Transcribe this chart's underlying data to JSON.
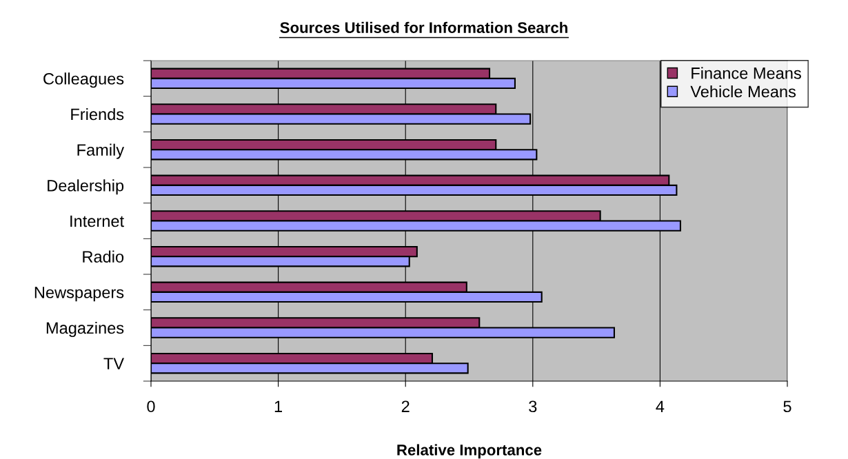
{
  "chart_data": {
    "type": "bar",
    "orientation": "horizontal",
    "title": "Sources Utilised for Information Search",
    "xlabel": "Relative Importance",
    "categories": [
      "Colleagues",
      "Friends",
      "Family",
      "Dealership",
      "Internet",
      "Radio",
      "Newspapers",
      "Magazines",
      "TV"
    ],
    "series": [
      {
        "name": "Finance Means",
        "color": "#993366",
        "values": [
          2.66,
          2.71,
          2.71,
          4.07,
          3.53,
          2.09,
          2.48,
          2.58,
          2.21
        ]
      },
      {
        "name": "Vehicle Means",
        "color": "#9999ff",
        "values": [
          2.86,
          2.98,
          3.03,
          4.13,
          4.16,
          2.03,
          3.07,
          3.64,
          2.49
        ]
      }
    ],
    "xlim": [
      0,
      5
    ],
    "xticks": [
      0,
      1,
      2,
      3,
      4,
      5
    ],
    "grid": "x",
    "legend": "top right"
  }
}
